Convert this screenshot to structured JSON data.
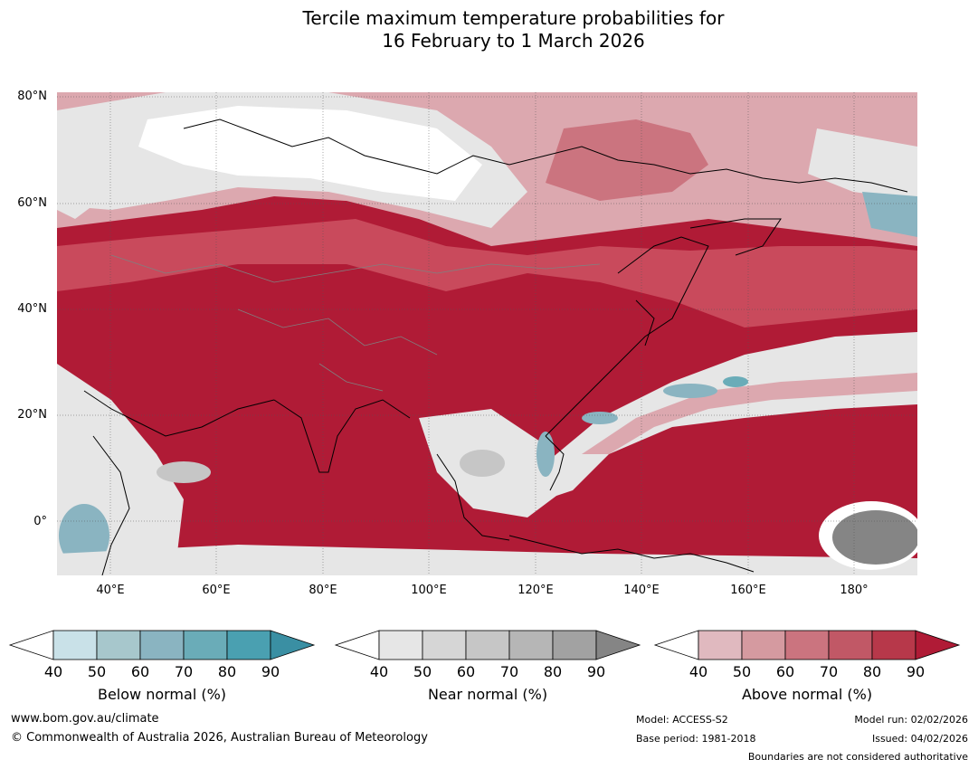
{
  "title_line1": "Tercile maximum temperature probabilities for",
  "title_line2": "16 February to 1 March 2026",
  "lat_labels": [
    "80°N",
    "60°N",
    "40°N",
    "20°N",
    "0°"
  ],
  "lon_labels": [
    "40°E",
    "60°E",
    "80°E",
    "100°E",
    "120°E",
    "140°E",
    "160°E",
    "180°"
  ],
  "legends": [
    {
      "title": "Below normal (%)",
      "ticks": [
        "40",
        "50",
        "60",
        "70",
        "80",
        "90"
      ],
      "colors": [
        "#c9e1e8",
        "#a7c7cc",
        "#8ab4c1",
        "#6aacb8",
        "#4aa0b1",
        "#3a8fa3"
      ]
    },
    {
      "title": "Near normal (%)",
      "ticks": [
        "40",
        "50",
        "60",
        "70",
        "80",
        "90"
      ],
      "colors": [
        "#e6e6e6",
        "#d6d6d6",
        "#c6c6c6",
        "#b6b6b6",
        "#a2a2a2",
        "#858585"
      ]
    },
    {
      "title": "Above normal (%)",
      "ticks": [
        "40",
        "50",
        "60",
        "70",
        "80",
        "90"
      ],
      "colors": [
        "#e0b9bf",
        "#d59aa0",
        "#cb747f",
        "#c15866",
        "#b7384a",
        "#b01b36"
      ]
    }
  ],
  "colors": {
    "above_high": "#b01b36",
    "above_mid": "#c94a5c",
    "above_low": "#dca8af",
    "near": "#e6e6e6",
    "near_dark": "#858585",
    "below": "#8ab4c1",
    "coast": "#000000",
    "border": "#808080"
  },
  "footer": {
    "website": "www.bom.gov.au/climate",
    "copyright": "© Commonwealth of Australia 2026, Australian Bureau of Meteorology",
    "model": "Model: ACCESS-S2",
    "base_period": "Base period: 1981-2018",
    "model_run": "Model run: 02/02/2026",
    "issued": "Issued: 04/02/2026",
    "boundaries": "Boundaries are not considered authoritative"
  }
}
